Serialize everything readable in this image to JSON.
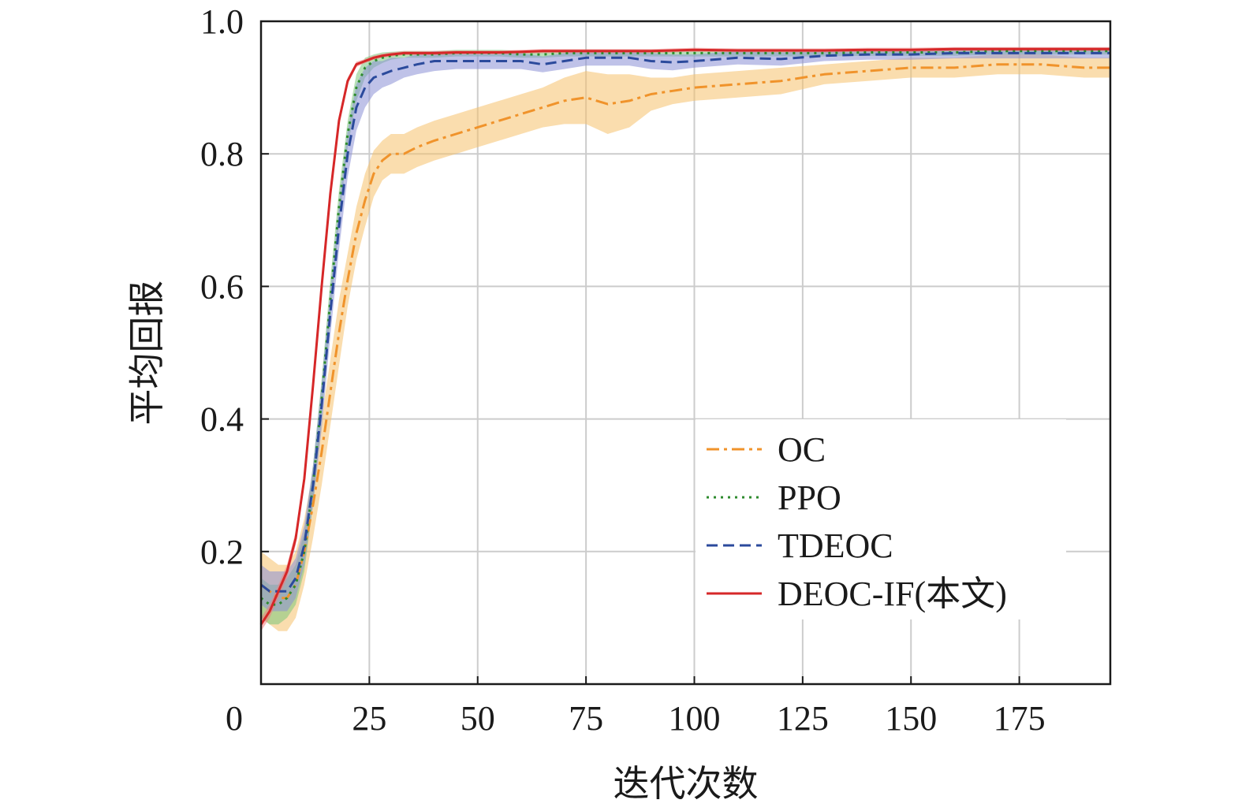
{
  "chart_data": {
    "type": "line",
    "title": "",
    "xlabel": "迭代次数",
    "ylabel": "平均回报",
    "xlim": [
      0,
      196
    ],
    "ylim": [
      0,
      1.0
    ],
    "xticks": [
      0,
      25,
      50,
      75,
      100,
      125,
      150,
      175
    ],
    "yticks": [
      0.2,
      0.4,
      0.6,
      0.8,
      1.0
    ],
    "xtick_labels": [
      "0",
      "25",
      "50",
      "75",
      "100",
      "125",
      "150",
      "175"
    ],
    "ytick_labels": [
      "0.2",
      "0.4",
      "0.6",
      "0.8",
      "1.0"
    ],
    "grid": true,
    "legend_position": "lower-right",
    "x": [
      0,
      2,
      4,
      6,
      8,
      10,
      12,
      14,
      16,
      18,
      20,
      22,
      24,
      26,
      28,
      30,
      33,
      36,
      40,
      45,
      50,
      55,
      60,
      65,
      70,
      75,
      80,
      85,
      90,
      95,
      100,
      110,
      120,
      130,
      140,
      150,
      160,
      170,
      180,
      190,
      196
    ],
    "series": [
      {
        "name": "OC",
        "color": "#f0932b",
        "dash": "dashdot",
        "band_color": "#f5c16c",
        "values": [
          0.15,
          0.14,
          0.13,
          0.13,
          0.15,
          0.2,
          0.27,
          0.35,
          0.44,
          0.53,
          0.61,
          0.68,
          0.73,
          0.77,
          0.79,
          0.8,
          0.8,
          0.81,
          0.82,
          0.83,
          0.84,
          0.85,
          0.86,
          0.87,
          0.88,
          0.885,
          0.875,
          0.88,
          0.89,
          0.895,
          0.9,
          0.905,
          0.91,
          0.92,
          0.925,
          0.93,
          0.93,
          0.935,
          0.935,
          0.93,
          0.93
        ],
        "band": [
          0.05,
          0.05,
          0.05,
          0.05,
          0.05,
          0.05,
          0.05,
          0.05,
          0.05,
          0.05,
          0.04,
          0.04,
          0.04,
          0.035,
          0.03,
          0.03,
          0.03,
          0.03,
          0.03,
          0.03,
          0.03,
          0.03,
          0.03,
          0.03,
          0.035,
          0.04,
          0.045,
          0.04,
          0.025,
          0.02,
          0.02,
          0.02,
          0.02,
          0.015,
          0.015,
          0.015,
          0.015,
          0.015,
          0.015,
          0.015,
          0.015
        ]
      },
      {
        "name": "PPO",
        "color": "#2e8b2e",
        "dash": "dotted",
        "band_color": "#7cc77c",
        "values": [
          0.13,
          0.12,
          0.12,
          0.13,
          0.15,
          0.2,
          0.3,
          0.43,
          0.58,
          0.72,
          0.83,
          0.9,
          0.93,
          0.94,
          0.945,
          0.948,
          0.95,
          0.95,
          0.95,
          0.952,
          0.952,
          0.952,
          0.95,
          0.95,
          0.952,
          0.952,
          0.952,
          0.952,
          0.952,
          0.952,
          0.952,
          0.952,
          0.952,
          0.952,
          0.953,
          0.953,
          0.953,
          0.955,
          0.955,
          0.955,
          0.955
        ],
        "band": [
          0.03,
          0.03,
          0.03,
          0.03,
          0.03,
          0.03,
          0.03,
          0.03,
          0.03,
          0.025,
          0.02,
          0.02,
          0.015,
          0.01,
          0.008,
          0.006,
          0.005,
          0.005,
          0.005,
          0.005,
          0.005,
          0.005,
          0.005,
          0.005,
          0.005,
          0.005,
          0.005,
          0.005,
          0.005,
          0.005,
          0.005,
          0.005,
          0.005,
          0.005,
          0.005,
          0.005,
          0.005,
          0.005,
          0.005,
          0.005,
          0.005
        ]
      },
      {
        "name": "TDEOC",
        "color": "#2b4a9c",
        "dash": "dashed",
        "band_color": "#8a8fd6",
        "values": [
          0.15,
          0.14,
          0.14,
          0.14,
          0.16,
          0.21,
          0.3,
          0.42,
          0.56,
          0.69,
          0.8,
          0.87,
          0.9,
          0.915,
          0.92,
          0.925,
          0.93,
          0.935,
          0.94,
          0.94,
          0.94,
          0.94,
          0.94,
          0.935,
          0.94,
          0.945,
          0.945,
          0.945,
          0.94,
          0.938,
          0.94,
          0.945,
          0.943,
          0.948,
          0.95,
          0.95,
          0.952,
          0.952,
          0.952,
          0.952,
          0.952
        ],
        "band": [
          0.03,
          0.03,
          0.03,
          0.03,
          0.03,
          0.03,
          0.03,
          0.035,
          0.035,
          0.035,
          0.035,
          0.035,
          0.03,
          0.025,
          0.02,
          0.02,
          0.015,
          0.015,
          0.015,
          0.012,
          0.012,
          0.012,
          0.012,
          0.012,
          0.012,
          0.012,
          0.012,
          0.012,
          0.012,
          0.012,
          0.01,
          0.01,
          0.01,
          0.008,
          0.008,
          0.008,
          0.008,
          0.008,
          0.008,
          0.008,
          0.008
        ]
      },
      {
        "name": "DEOC-IF(本文)",
        "color": "#d62728",
        "dash": "solid",
        "band_color": "#f08080",
        "values": [
          0.09,
          0.11,
          0.14,
          0.17,
          0.22,
          0.31,
          0.45,
          0.6,
          0.74,
          0.85,
          0.91,
          0.935,
          0.94,
          0.945,
          0.948,
          0.95,
          0.952,
          0.952,
          0.952,
          0.953,
          0.953,
          0.953,
          0.954,
          0.955,
          0.955,
          0.955,
          0.955,
          0.955,
          0.955,
          0.956,
          0.957,
          0.956,
          0.956,
          0.956,
          0.957,
          0.957,
          0.958,
          0.958,
          0.958,
          0.958,
          0.958
        ],
        "band": [
          0.01,
          0.01,
          0.01,
          0.01,
          0.01,
          0.01,
          0.01,
          0.01,
          0.01,
          0.008,
          0.005,
          0.004,
          0.003,
          0.003,
          0.003,
          0.003,
          0.003,
          0.003,
          0.003,
          0.003,
          0.003,
          0.003,
          0.003,
          0.003,
          0.003,
          0.003,
          0.003,
          0.003,
          0.003,
          0.003,
          0.003,
          0.003,
          0.003,
          0.003,
          0.003,
          0.003,
          0.003,
          0.003,
          0.003,
          0.003,
          0.003
        ]
      }
    ]
  }
}
